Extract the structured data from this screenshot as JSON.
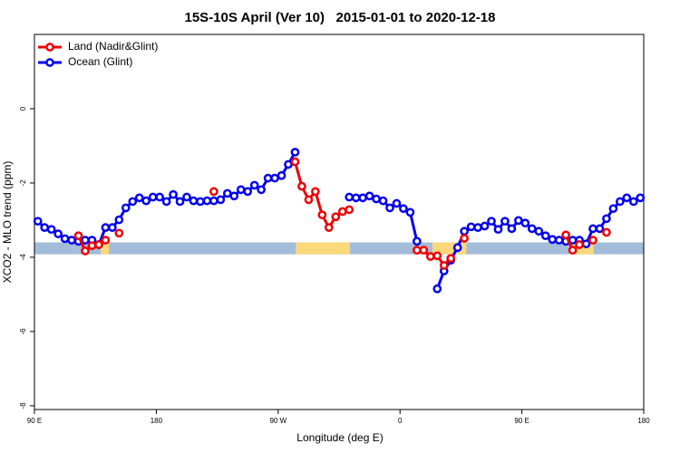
{
  "chart_data": {
    "type": "line",
    "title": "15S-10S April (Ver 10)   2015-01-01 to 2020-12-18",
    "x_label": "Longitude (deg E)",
    "y_label": "XCO2 - MLO trend (ppm)",
    "xlim": [
      90,
      540
    ],
    "ylim": [
      -8.1,
      2.0
    ],
    "xticks": [
      {
        "value": 90,
        "label": "90 E"
      },
      180,
      {
        "value": 270,
        "label": "90 W"
      },
      {
        "value": 360,
        "label": "0"
      },
      {
        "value": 450,
        "label": "90 E"
      },
      {
        "value": 540,
        "label": "180"
      }
    ],
    "yticks": [
      0,
      -2,
      -4,
      -6,
      -8
    ],
    "legend": "top-left",
    "band": {
      "ylim": [
        -3.92,
        -3.6
      ],
      "ocean_color": "#a3bcda",
      "land_color": "#fbd97a",
      "land": [
        [
          139,
          145
        ],
        [
          283,
          323
        ],
        [
          384,
          409
        ],
        [
          485,
          503
        ]
      ]
    },
    "x": [
      92.5,
      97.5,
      102.5,
      107.5,
      112.5,
      117.5,
      122.5,
      127.5,
      132.5,
      137.5,
      142.5,
      147.5,
      152.5,
      157.5,
      162.5,
      167.5,
      172.5,
      177.5,
      182.5,
      187.5,
      192.5,
      197.5,
      202.5,
      207.5,
      212.5,
      217.5,
      222.5,
      227.5,
      232.5,
      237.5,
      242.5,
      247.5,
      252.5,
      257.5,
      262.5,
      267.5,
      272.5,
      277.5,
      282.5,
      287.5,
      292.5,
      297.5,
      302.5,
      307.5,
      312.5,
      317.5,
      322.5,
      327.5,
      332.5,
      337.5,
      342.5,
      347.5,
      352.5,
      357.5,
      362.5,
      367.5,
      372.5,
      377.5,
      382.5,
      387.5,
      392.5,
      397.5,
      402.5,
      407.5,
      412.5,
      417.5,
      422.5,
      427.5,
      432.5,
      437.5,
      442.5,
      447.5,
      452.5,
      457.5,
      462.5,
      467.5,
      472.5,
      477.5,
      482.5,
      487.5,
      492.5,
      497.5,
      502.5,
      507.5,
      512.5,
      517.5,
      522.5,
      527.5,
      532.5,
      537.5
    ],
    "series": [
      {
        "name": "Ocean (Glint)",
        "color": "#0000ee",
        "values": [
          -3.03,
          -3.2,
          -3.25,
          -3.37,
          -3.5,
          -3.54,
          -3.57,
          -3.54,
          -3.54,
          -3.66,
          -3.2,
          -3.2,
          -2.99,
          -2.67,
          -2.5,
          -2.4,
          -2.48,
          -2.38,
          -2.38,
          -2.5,
          -2.31,
          -2.5,
          -2.38,
          -2.48,
          -2.5,
          -2.48,
          -2.48,
          -2.45,
          -2.28,
          -2.35,
          -2.18,
          -2.23,
          -2.06,
          -2.18,
          -1.87,
          -1.87,
          -1.8,
          -1.5,
          -1.17,
          null,
          null,
          null,
          null,
          null,
          null,
          null,
          -2.38,
          -2.4,
          -2.4,
          -2.35,
          -2.43,
          -2.48,
          -2.67,
          -2.55,
          -2.69,
          -2.79,
          -3.57,
          null,
          null,
          -4.85,
          -4.37,
          -4.08,
          -3.74,
          -3.3,
          -3.18,
          -3.2,
          -3.16,
          -3.03,
          -3.25,
          -3.03,
          -3.23,
          -3.01,
          -3.08,
          -3.23,
          -3.3,
          -3.42,
          -3.52,
          -3.54,
          -3.57,
          -3.54,
          -3.54,
          -3.64,
          -3.23,
          -3.23,
          -2.96,
          -2.69,
          -2.5,
          -2.4,
          -2.5,
          -2.4
        ]
      },
      {
        "name": "Land (Nadir&Glint)",
        "color": "#ee0000",
        "values": [
          null,
          null,
          null,
          null,
          null,
          null,
          -3.42,
          -3.83,
          -3.69,
          -3.66,
          -3.54,
          null,
          -3.35,
          null,
          null,
          null,
          null,
          null,
          null,
          null,
          null,
          null,
          null,
          null,
          null,
          null,
          -2.23,
          null,
          null,
          null,
          null,
          null,
          null,
          null,
          null,
          null,
          null,
          null,
          -1.43,
          -2.09,
          -2.45,
          -2.23,
          -2.86,
          -3.2,
          -2.91,
          -2.77,
          -2.72,
          null,
          null,
          null,
          null,
          null,
          null,
          null,
          null,
          null,
          -3.81,
          -3.81,
          -3.98,
          -3.96,
          -4.22,
          -4.03,
          null,
          -3.49,
          null,
          null,
          null,
          null,
          null,
          null,
          null,
          null,
          null,
          null,
          null,
          null,
          null,
          null,
          -3.4,
          -3.81,
          -3.66,
          null,
          -3.54,
          null,
          -3.33,
          null,
          null,
          null,
          null,
          null
        ]
      }
    ]
  }
}
